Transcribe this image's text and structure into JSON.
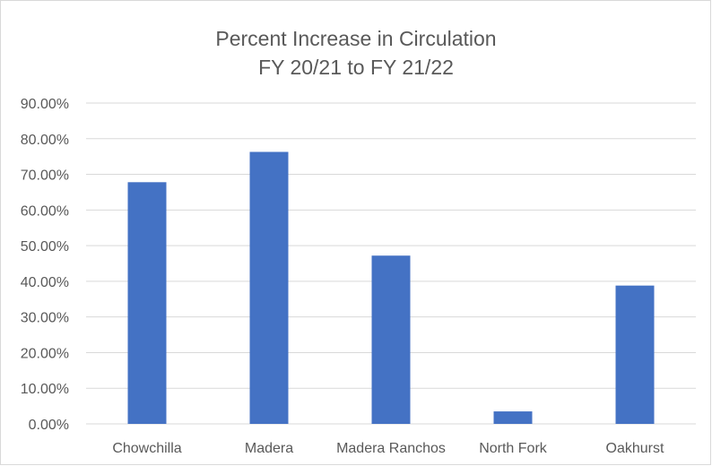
{
  "chart_data": {
    "type": "bar",
    "title": "Percent Increase in Circulation",
    "subtitle": "FY 20/21 to FY 21/22",
    "xlabel": "",
    "ylabel": "",
    "categories": [
      "Chowchilla",
      "Madera",
      "Madera Ranchos",
      "North Fork",
      "Oakhurst"
    ],
    "values": [
      67.8,
      76.3,
      47.2,
      3.5,
      38.8
    ],
    "ylim": [
      0,
      90
    ],
    "y_ticks": [
      "0.00%",
      "10.00%",
      "20.00%",
      "30.00%",
      "40.00%",
      "50.00%",
      "60.00%",
      "70.00%",
      "80.00%",
      "90.00%"
    ],
    "grid": true,
    "legend": "none",
    "colors": {
      "bar": "#4472c4",
      "grid": "#d9d9d9",
      "text": "#595959"
    }
  }
}
